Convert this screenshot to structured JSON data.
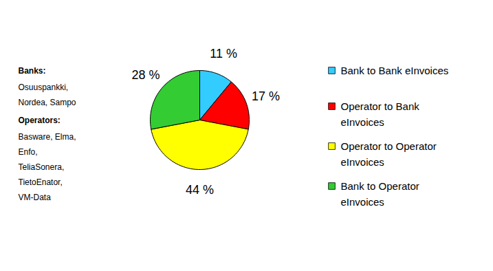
{
  "chart_data": {
    "type": "pie",
    "categories": [
      "Bank to Bank eInvoices",
      "Operator to Bank eInvoices",
      "Operator to Operator eInvoices",
      "Bank to Operator eInvoices"
    ],
    "values": [
      11,
      17,
      44,
      28
    ],
    "value_labels": [
      "11 %",
      "17 %",
      "44 %",
      "28 %"
    ],
    "colors": [
      "#33ccff",
      "#ff0000",
      "#ffff00",
      "#33cc33"
    ],
    "data_labels": true,
    "legend": "right",
    "annotations": [
      {
        "heading": "Banks:",
        "lines": [
          "Osuuspankki,",
          "Nordea, Sampo"
        ]
      },
      {
        "heading": "Operators:",
        "lines": [
          "Basware, Elma,",
          "Enfo,",
          "TeliaSonera,",
          "TietoEnator,",
          "VM-Data"
        ]
      }
    ]
  }
}
